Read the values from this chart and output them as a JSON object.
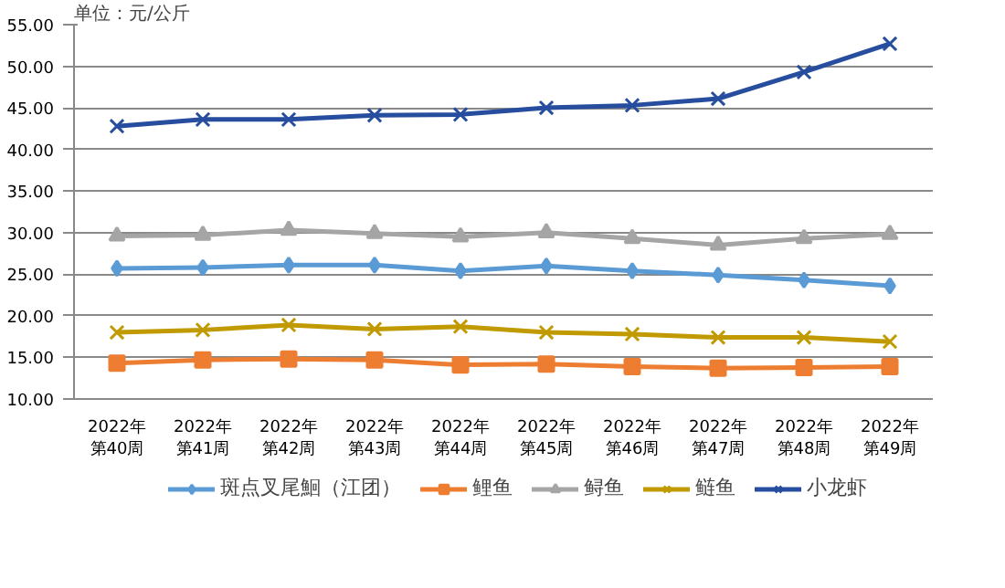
{
  "chart_data": {
    "type": "line",
    "title": "单位：元/公斤",
    "categories": [
      "2022年第40周",
      "2022年第41周",
      "2022年第42周",
      "2022年第43周",
      "2022年第44周",
      "2022年第45周",
      "2022年第46周",
      "2022年第47周",
      "2022年第48周",
      "2022年第49周"
    ],
    "series": [
      {
        "name": "斑点叉尾鮰（江团）",
        "color": "#5b9bd5",
        "marker": "diamond",
        "values": [
          25.7,
          25.8,
          26.1,
          26.1,
          25.4,
          26.0,
          25.4,
          24.9,
          24.3,
          23.6
        ]
      },
      {
        "name": "鲤鱼",
        "color": "#ed7d31",
        "marker": "square",
        "values": [
          14.3,
          14.7,
          14.8,
          14.7,
          14.1,
          14.2,
          13.9,
          13.7,
          13.8,
          13.9
        ]
      },
      {
        "name": "鲟鱼",
        "color": "#a5a5a5",
        "marker": "triangle",
        "values": [
          29.6,
          29.7,
          30.3,
          29.9,
          29.5,
          30.0,
          29.3,
          28.5,
          29.3,
          29.8
        ]
      },
      {
        "name": "鲢鱼",
        "color": "#c09a00",
        "marker": "cross",
        "values": [
          18.0,
          18.3,
          18.9,
          18.4,
          18.7,
          18.0,
          17.8,
          17.4,
          17.4,
          16.9
        ]
      },
      {
        "name": "小龙虾",
        "color": "#264d9e",
        "marker": "cross",
        "values": [
          42.8,
          43.6,
          43.6,
          44.1,
          44.2,
          45.0,
          45.3,
          46.1,
          49.3,
          52.7
        ]
      }
    ],
    "ylim": [
      10,
      55
    ],
    "yticks": [
      {
        "value": 10,
        "label": "10.00"
      },
      {
        "value": 15,
        "label": "15.00"
      },
      {
        "value": 20,
        "label": "20.00"
      },
      {
        "value": 25,
        "label": "25.00"
      },
      {
        "value": 30,
        "label": "30.00"
      },
      {
        "value": 35,
        "label": "35.00"
      },
      {
        "value": 40,
        "label": "40.00"
      },
      {
        "value": 45,
        "label": "45.00"
      },
      {
        "value": 50,
        "label": "50.00"
      },
      {
        "value": 55,
        "label": "55.00"
      }
    ],
    "grid": "y",
    "legend": "bottom",
    "line_style": "solid"
  }
}
